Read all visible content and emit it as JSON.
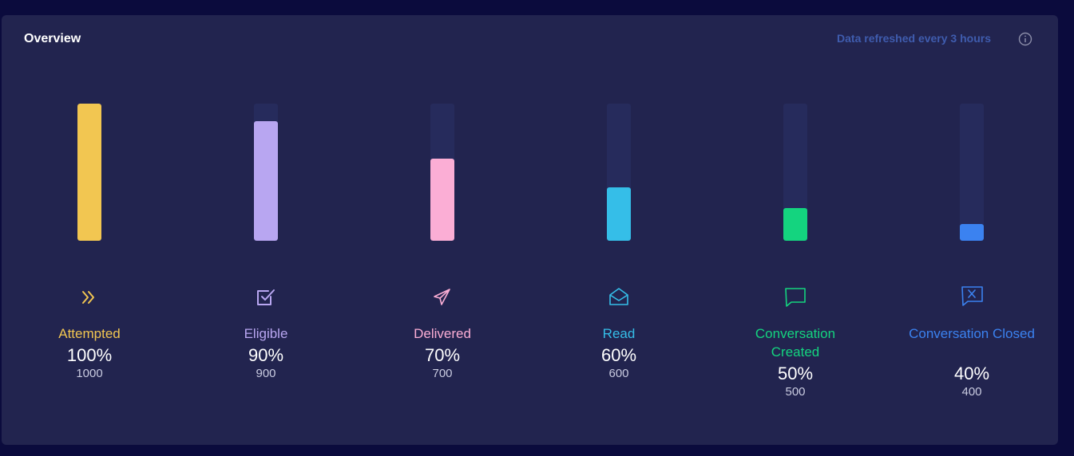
{
  "header": {
    "title": "Overview",
    "refresh_note": "Data refreshed every 3 hours",
    "info_icon": "info-icon"
  },
  "metrics": [
    {
      "label": "Attempted",
      "percent": "100%",
      "count": "1000",
      "level": 1.0,
      "color": "#f2c651",
      "icon": "chevrons-right-icon"
    },
    {
      "label": "Eligible",
      "percent": "90%",
      "count": "900",
      "level": 0.87,
      "color": "#b8a6f1",
      "icon": "checkbox-icon"
    },
    {
      "label": "Delivered",
      "percent": "70%",
      "count": "700",
      "level": 0.6,
      "color": "#fbaed5",
      "icon": "send-icon"
    },
    {
      "label": "Read",
      "percent": "60%",
      "count": "600",
      "level": 0.39,
      "color": "#35bee8",
      "icon": "open-envelope-icon"
    },
    {
      "label": "Conversation Created",
      "percent": "50%",
      "count": "500",
      "level": 0.24,
      "color": "#14d47f",
      "icon": "chat-bubble-icon"
    },
    {
      "label": "Conversation Closed",
      "percent": "40%",
      "count": "400",
      "level": 0.12,
      "color": "#3b82f0",
      "icon": "chat-closed-icon"
    }
  ]
}
